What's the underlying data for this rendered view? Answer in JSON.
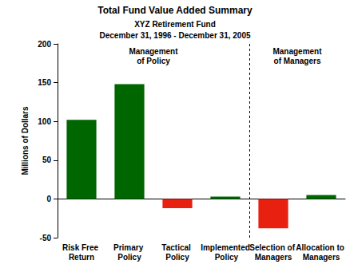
{
  "chart_data": {
    "type": "bar",
    "title": "Total Fund Value Added Summary",
    "subtitle": [
      "XYZ Retirement Fund",
      "December 31, 1996 - December 31, 2005"
    ],
    "y_label": "Millions of Dollars",
    "categories": [
      "Risk Free Return",
      "Primary Policy",
      "Tactical Policy",
      "Implemented Policy",
      "Selection of Managers",
      "Allocation to Managers"
    ],
    "values": [
      102,
      148,
      -12,
      3,
      -38,
      5
    ],
    "colors": [
      "#006600",
      "#006600",
      "#e82010",
      "#006600",
      "#e82010",
      "#006600"
    ],
    "groups": [
      {
        "label": "Management of Policy",
        "categories": [
          "Risk Free Return",
          "Primary Policy",
          "Tactical Policy",
          "Implemented Policy"
        ]
      },
      {
        "label": "Management of Managers",
        "categories": [
          "Selection of Managers",
          "Allocation to Managers"
        ]
      }
    ],
    "ylim": [
      -50,
      200
    ],
    "yticks": [
      -50,
      0,
      50,
      100,
      150,
      200
    ],
    "grid": false
  }
}
